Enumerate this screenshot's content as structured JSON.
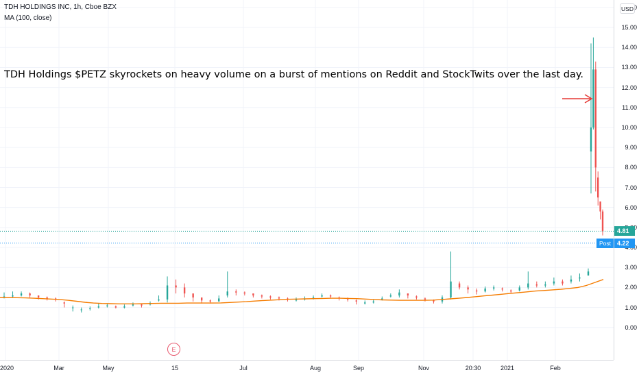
{
  "header": {
    "symbol_line": "TDH HOLDINGS INC, 1h, Cboe BZX",
    "indicator_line": "MA (100, close)",
    "currency": "USD"
  },
  "annotation": {
    "text": "TDH Holdings $PETZ skyrockets on heavy volume on a burst of mentions on Reddit and StockTwits over the last day."
  },
  "price_tags": {
    "last": "4.81",
    "post_label": "Post",
    "post_value": "4.22"
  },
  "events": {
    "earnings_marker": "E"
  },
  "colors": {
    "up": "#26a69a",
    "down": "#ef5350",
    "ma": "#f57c00",
    "post": "#2196f3",
    "last_tag": "#26a69a",
    "arrow": "#e53935"
  },
  "chart_data": {
    "type": "candlestick",
    "series": [
      {
        "name": "TDH HOLDINGS INC",
        "type": "ohlc",
        "close": [
          1.55,
          1.6,
          1.7,
          1.6,
          1.5,
          1.45,
          1.4,
          1.2,
          1.0,
          0.9,
          0.95,
          1.05,
          1.1,
          1.0,
          1.05,
          1.15,
          1.1,
          1.2,
          1.4,
          2.1,
          2.0,
          1.7,
          1.5,
          1.35,
          1.3,
          1.45,
          1.8,
          1.75,
          1.7,
          1.6,
          1.55,
          1.5,
          1.45,
          1.4,
          1.4,
          1.45,
          1.5,
          1.6,
          1.55,
          1.45,
          1.4,
          1.3,
          1.25,
          1.3,
          1.45,
          1.6,
          1.75,
          1.6,
          1.5,
          1.4,
          1.3,
          1.5,
          2.3,
          2.0,
          1.9,
          1.8,
          1.95,
          2.0,
          1.9,
          1.8,
          2.0,
          2.2,
          2.1,
          2.15,
          2.3,
          2.2,
          2.4,
          2.5,
          2.8,
          10.0,
          12.9,
          8.0,
          6.5,
          5.8,
          4.81
        ],
        "high": [
          1.75,
          1.8,
          1.8,
          1.75,
          1.6,
          1.55,
          1.5,
          1.3,
          1.1,
          1.0,
          1.05,
          1.2,
          1.2,
          1.1,
          1.15,
          1.25,
          1.2,
          1.3,
          1.6,
          2.55,
          2.4,
          2.2,
          1.7,
          1.5,
          1.4,
          1.6,
          2.8,
          1.9,
          1.8,
          1.7,
          1.65,
          1.6,
          1.55,
          1.5,
          1.5,
          1.55,
          1.6,
          1.7,
          1.65,
          1.55,
          1.5,
          1.4,
          1.35,
          1.4,
          1.55,
          1.7,
          1.9,
          1.7,
          1.6,
          1.5,
          1.4,
          1.6,
          3.8,
          2.3,
          2.1,
          1.95,
          2.05,
          2.1,
          2.0,
          1.9,
          2.1,
          2.8,
          2.3,
          2.3,
          2.5,
          2.4,
          2.6,
          2.7,
          2.95,
          14.2,
          14.5,
          13.3,
          7.8,
          6.3,
          5.9
        ],
        "low": [
          1.45,
          1.5,
          1.55,
          1.5,
          1.4,
          1.35,
          1.3,
          1.0,
          0.8,
          0.75,
          0.85,
          0.95,
          1.0,
          0.95,
          0.95,
          1.05,
          1.0,
          1.1,
          1.3,
          1.25,
          1.7,
          1.5,
          1.3,
          1.2,
          1.2,
          1.3,
          1.5,
          1.6,
          1.6,
          1.5,
          1.45,
          1.4,
          1.35,
          1.3,
          1.3,
          1.35,
          1.4,
          1.5,
          1.45,
          1.35,
          1.3,
          1.15,
          1.15,
          1.2,
          1.35,
          1.5,
          1.5,
          1.45,
          1.4,
          1.3,
          1.2,
          1.2,
          1.4,
          1.9,
          1.7,
          1.65,
          1.75,
          1.85,
          1.8,
          1.7,
          1.8,
          1.9,
          2.0,
          2.0,
          2.1,
          2.1,
          2.2,
          2.3,
          2.6,
          6.7,
          9.9,
          6.8,
          6.1,
          5.4,
          4.6
        ],
        "open": [
          1.5,
          1.55,
          1.6,
          1.7,
          1.6,
          1.5,
          1.45,
          1.25,
          1.0,
          0.9,
          0.95,
          1.0,
          1.1,
          1.05,
          1.0,
          1.1,
          1.15,
          1.15,
          1.35,
          1.4,
          2.1,
          2.0,
          1.7,
          1.5,
          1.35,
          1.3,
          1.6,
          1.8,
          1.75,
          1.7,
          1.6,
          1.55,
          1.5,
          1.45,
          1.35,
          1.4,
          1.45,
          1.55,
          1.6,
          1.5,
          1.45,
          1.35,
          1.2,
          1.25,
          1.4,
          1.55,
          1.6,
          1.7,
          1.55,
          1.45,
          1.35,
          1.3,
          1.5,
          2.2,
          2.0,
          1.85,
          1.8,
          1.95,
          1.95,
          1.85,
          1.85,
          2.0,
          2.15,
          2.1,
          2.2,
          2.3,
          2.3,
          2.45,
          2.6,
          8.8,
          10.0,
          12.9,
          7.5,
          6.3,
          5.8
        ]
      },
      {
        "name": "MA (100, close)",
        "type": "line",
        "values": [
          1.5,
          1.5,
          1.49,
          1.48,
          1.46,
          1.44,
          1.42,
          1.4,
          1.36,
          1.31,
          1.26,
          1.22,
          1.2,
          1.19,
          1.18,
          1.18,
          1.18,
          1.19,
          1.2,
          1.21,
          1.21,
          1.21,
          1.22,
          1.22,
          1.22,
          1.22,
          1.23,
          1.25,
          1.27,
          1.29,
          1.32,
          1.35,
          1.37,
          1.39,
          1.41,
          1.42,
          1.43,
          1.44,
          1.45,
          1.46,
          1.46,
          1.45,
          1.44,
          1.42,
          1.4,
          1.38,
          1.37,
          1.36,
          1.36,
          1.36,
          1.36,
          1.37,
          1.4,
          1.43,
          1.46,
          1.5,
          1.54,
          1.58,
          1.62,
          1.66,
          1.7,
          1.74,
          1.78,
          1.82,
          1.85,
          1.88,
          1.91,
          1.95,
          2.0,
          2.1,
          2.25,
          2.4
        ]
      }
    ],
    "x_ticks": [
      "2020",
      "Mar",
      "May",
      "15",
      "Jul",
      "Aug",
      "Sep",
      "Nov",
      "20:30",
      "2021",
      "Feb"
    ],
    "y_ticks": [
      "16.00",
      "15.00",
      "14.00",
      "13.00",
      "12.00",
      "11.00",
      "10.00",
      "9.00",
      "8.00",
      "7.00",
      "6.00",
      "5.00",
      "4.00",
      "3.00",
      "2.00",
      "1.00",
      "0.00"
    ],
    "ylim": [
      -0.9,
      16.1
    ],
    "grid": true,
    "last_price": 4.81,
    "post_market_price": 4.22
  }
}
